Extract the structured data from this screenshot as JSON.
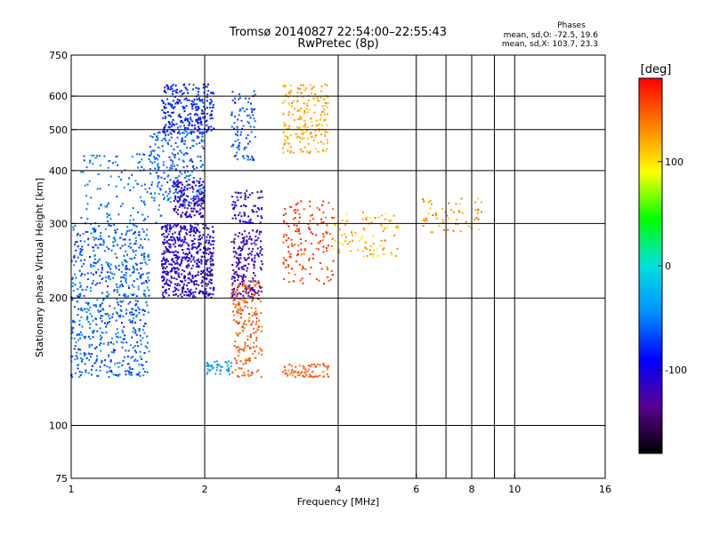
{
  "chart_data": {
    "type": "scatter",
    "title": "Tromsø 20140827 22:54:00–22:55:43",
    "subtitle": "RwPretec (8p)",
    "xlabel": "Frequency [MHz]",
    "ylabel": "Stationary phase Virtual Height [km]",
    "x_scale": "log",
    "y_scale": "log",
    "xlim": [
      1,
      16
    ],
    "ylim": [
      75,
      750
    ],
    "x_ticks": [
      1,
      2,
      4,
      6,
      8,
      10,
      16
    ],
    "x_tick_labels": [
      "1",
      "2",
      "4",
      "6",
      "8",
      "10",
      "16"
    ],
    "x_grid": [
      2,
      4,
      6,
      7,
      8,
      9,
      10
    ],
    "y_ticks": [
      75,
      100,
      200,
      300,
      400,
      500,
      600,
      750
    ],
    "y_tick_labels": [
      "75",
      "100",
      "200",
      "300",
      "400",
      "500",
      "600",
      "750"
    ],
    "y_grid": [
      100,
      200,
      300,
      400,
      500,
      600
    ],
    "grid": true,
    "stats": {
      "title": "Phases",
      "lines": [
        "mean, sd,O: -72.5, 19.6",
        "mean, sd,X: 103.7, 23.3"
      ]
    },
    "colorbar": {
      "label": "[deg]",
      "min": -180,
      "max": 180,
      "ticks": [
        100,
        0,
        -100
      ],
      "tick_labels": [
        "100",
        "0",
        "-100"
      ],
      "colors": [
        "#000000",
        "#5a0090",
        "#0000ff",
        "#0090ff",
        "#00e0e0",
        "#00ff00",
        "#ffff00",
        "#ff8000",
        "#ff0000"
      ]
    },
    "clusters": [
      {
        "x": [
          1.0,
          1.5
        ],
        "y": [
          130,
          300
        ],
        "phase": [
          -80,
          -40
        ],
        "n": 700
      },
      {
        "x": [
          1.05,
          1.6
        ],
        "y": [
          300,
          440
        ],
        "phase": [
          -70,
          -40
        ],
        "n": 120
      },
      {
        "x": [
          1.5,
          2.0
        ],
        "y": [
          330,
          500
        ],
        "phase": [
          -75,
          -45
        ],
        "n": 250
      },
      {
        "x": [
          1.6,
          2.1
        ],
        "y": [
          490,
          640
        ],
        "phase": [
          -95,
          -65
        ],
        "n": 260
      },
      {
        "x": [
          2.3,
          2.6
        ],
        "y": [
          420,
          620
        ],
        "phase": [
          -80,
          -50
        ],
        "n": 90
      },
      {
        "x": [
          1.6,
          2.1
        ],
        "y": [
          200,
          300
        ],
        "phase": [
          -125,
          -95
        ],
        "n": 550
      },
      {
        "x": [
          1.7,
          2.0
        ],
        "y": [
          310,
          380
        ],
        "phase": [
          -130,
          -100
        ],
        "n": 150
      },
      {
        "x": [
          2.3,
          2.7
        ],
        "y": [
          200,
          290
        ],
        "phase": [
          -130,
          -100
        ],
        "n": 200
      },
      {
        "x": [
          2.3,
          2.7
        ],
        "y": [
          300,
          360
        ],
        "phase": [
          -125,
          -95
        ],
        "n": 70
      },
      {
        "x": [
          2.3,
          2.7
        ],
        "y": [
          130,
          220
        ],
        "phase": [
          130,
          165
        ],
        "n": 200
      },
      {
        "x": [
          3.0,
          3.8
        ],
        "y": [
          130,
          140
        ],
        "phase": [
          135,
          160
        ],
        "n": 70
      },
      {
        "x": [
          3.0,
          3.8
        ],
        "y": [
          440,
          640
        ],
        "phase": [
          105,
          135
        ],
        "n": 200
      },
      {
        "x": [
          3.0,
          3.9
        ],
        "y": [
          215,
          340
        ],
        "phase": [
          140,
          175
        ],
        "n": 150
      },
      {
        "x": [
          3.9,
          5.5
        ],
        "y": [
          250,
          320
        ],
        "phase": [
          90,
          140
        ],
        "n": 90
      },
      {
        "x": [
          6.2,
          8.5
        ],
        "y": [
          285,
          345
        ],
        "phase": [
          100,
          150
        ],
        "n": 60
      },
      {
        "x": [
          2.0,
          2.3
        ],
        "y": [
          132,
          142
        ],
        "phase": [
          -50,
          -30
        ],
        "n": 40
      }
    ]
  }
}
